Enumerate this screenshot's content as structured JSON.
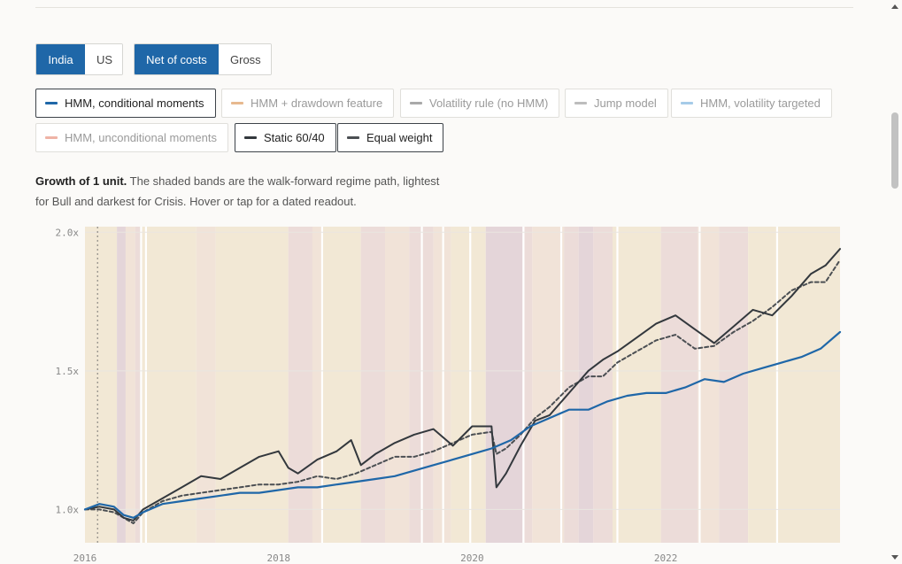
{
  "controls": {
    "market": [
      {
        "label": "India",
        "active": true
      },
      {
        "label": "US",
        "active": false
      }
    ],
    "cost": [
      {
        "label": "Net of costs",
        "active": true
      },
      {
        "label": "Gross",
        "active": false
      }
    ]
  },
  "legend": [
    {
      "label": "HMM, conditional moments",
      "color": "#1f67a8",
      "on": true
    },
    {
      "label": "HMM + drawdown feature",
      "color": "#e7b98f",
      "on": false
    },
    {
      "label": "Volatility rule (no HMM)",
      "color": "#a9a9a9",
      "on": false
    },
    {
      "label": "Jump model",
      "color": "#bdbdbd",
      "on": false
    },
    {
      "label": "HMM, volatility targeted",
      "color": "#a6cbe8",
      "on": false
    },
    {
      "label": "HMM, unconditional moments",
      "color": "#efb3a6",
      "on": false
    },
    {
      "label": "Static 60/40",
      "color": "#33383d",
      "on": true
    },
    {
      "label": "Equal weight",
      "color": "#4b4f53",
      "on": true
    }
  ],
  "caption": {
    "title": "Growth of 1 unit.",
    "text": "The shaded bands are the walk-forward regime path, lightest for Bull and darkest for Crisis. Hover or tap for a dated readout."
  },
  "chart_data": {
    "type": "line",
    "ylim": [
      0.88,
      2.02
    ],
    "xlim": [
      2016.0,
      2023.8
    ],
    "y_ticks": [
      {
        "v": 1.0,
        "label": "1.0x"
      },
      {
        "v": 1.5,
        "label": "1.5x"
      },
      {
        "v": 2.0,
        "label": "2.0x"
      }
    ],
    "x_ticks": [
      {
        "v": 2016,
        "label": "2016"
      },
      {
        "v": 2018,
        "label": "2018"
      },
      {
        "v": 2020,
        "label": "2020"
      },
      {
        "v": 2022,
        "label": "2022"
      }
    ],
    "marker_date": 2016.13,
    "regime_colors": {
      "bull": "#f2e8d5",
      "neutral": "#f1e3d8",
      "bear": "#ecdcd9",
      "crisis": "#e4d5d9"
    },
    "regimes": [
      {
        "start": 2016.0,
        "end": 2016.33,
        "regime": "bull"
      },
      {
        "start": 2016.33,
        "end": 2016.42,
        "regime": "crisis"
      },
      {
        "start": 2016.42,
        "end": 2016.52,
        "regime": "neutral"
      },
      {
        "start": 2016.52,
        "end": 2016.58,
        "regime": "bear"
      },
      {
        "start": 2016.58,
        "end": 2017.15,
        "regime": "bull"
      },
      {
        "start": 2017.15,
        "end": 2017.35,
        "regime": "neutral"
      },
      {
        "start": 2017.35,
        "end": 2018.1,
        "regime": "bull"
      },
      {
        "start": 2018.1,
        "end": 2018.35,
        "regime": "bear"
      },
      {
        "start": 2018.35,
        "end": 2018.45,
        "regime": "neutral"
      },
      {
        "start": 2018.45,
        "end": 2018.85,
        "regime": "bull"
      },
      {
        "start": 2018.85,
        "end": 2019.1,
        "regime": "bear"
      },
      {
        "start": 2019.1,
        "end": 2019.35,
        "regime": "neutral"
      },
      {
        "start": 2019.35,
        "end": 2019.6,
        "regime": "bear"
      },
      {
        "start": 2019.6,
        "end": 2019.78,
        "regime": "neutral"
      },
      {
        "start": 2019.78,
        "end": 2020.14,
        "regime": "bull"
      },
      {
        "start": 2020.14,
        "end": 2020.52,
        "regime": "crisis"
      },
      {
        "start": 2020.52,
        "end": 2020.62,
        "regime": "bear"
      },
      {
        "start": 2020.62,
        "end": 2020.95,
        "regime": "neutral"
      },
      {
        "start": 2020.95,
        "end": 2021.1,
        "regime": "bear"
      },
      {
        "start": 2021.1,
        "end": 2021.25,
        "regime": "crisis"
      },
      {
        "start": 2021.25,
        "end": 2021.45,
        "regime": "bear"
      },
      {
        "start": 2021.45,
        "end": 2021.95,
        "regime": "bull"
      },
      {
        "start": 2021.95,
        "end": 2022.33,
        "regime": "bear"
      },
      {
        "start": 2022.33,
        "end": 2022.55,
        "regime": "neutral"
      },
      {
        "start": 2022.55,
        "end": 2022.85,
        "regime": "bear"
      },
      {
        "start": 2022.85,
        "end": 2023.15,
        "regime": "bull"
      },
      {
        "start": 2023.15,
        "end": 2023.8,
        "regime": "bull"
      }
    ],
    "gap_lines": [
      2016.58,
      2016.63,
      2018.45,
      2019.48,
      2019.7,
      2019.98,
      2020.53,
      2020.92,
      2021.5,
      2022.35,
      2023.15
    ],
    "series": [
      {
        "name": "HMM, conditional moments",
        "color": "#1f67a8",
        "width": 2.2,
        "dash": "",
        "x": [
          2016.0,
          2016.15,
          2016.3,
          2016.4,
          2016.5,
          2016.6,
          2016.8,
          2017.0,
          2017.2,
          2017.4,
          2017.6,
          2017.8,
          2018.0,
          2018.2,
          2018.4,
          2018.6,
          2018.8,
          2019.0,
          2019.2,
          2019.4,
          2019.6,
          2019.8,
          2020.0,
          2020.2,
          2020.4,
          2020.6,
          2020.8,
          2021.0,
          2021.2,
          2021.4,
          2021.6,
          2021.8,
          2022.0,
          2022.2,
          2022.4,
          2022.6,
          2022.8,
          2023.0,
          2023.2,
          2023.4,
          2023.6,
          2023.8
        ],
        "y": [
          1.0,
          1.02,
          1.01,
          0.98,
          0.97,
          0.99,
          1.02,
          1.03,
          1.04,
          1.05,
          1.06,
          1.06,
          1.07,
          1.08,
          1.08,
          1.09,
          1.1,
          1.11,
          1.12,
          1.14,
          1.16,
          1.18,
          1.2,
          1.22,
          1.25,
          1.3,
          1.33,
          1.36,
          1.36,
          1.39,
          1.41,
          1.42,
          1.42,
          1.44,
          1.47,
          1.46,
          1.49,
          1.51,
          1.53,
          1.55,
          1.58,
          1.64
        ]
      },
      {
        "name": "Static 60/40",
        "color": "#33383d",
        "width": 2.0,
        "dash": "",
        "x": [
          2016.0,
          2016.15,
          2016.3,
          2016.4,
          2016.5,
          2016.6,
          2016.8,
          2017.0,
          2017.2,
          2017.4,
          2017.6,
          2017.8,
          2018.0,
          2018.1,
          2018.2,
          2018.4,
          2018.6,
          2018.75,
          2018.85,
          2019.0,
          2019.2,
          2019.4,
          2019.6,
          2019.8,
          2020.0,
          2020.2,
          2020.25,
          2020.35,
          2020.5,
          2020.65,
          2020.8,
          2021.0,
          2021.2,
          2021.35,
          2021.5,
          2021.7,
          2021.9,
          2022.1,
          2022.3,
          2022.5,
          2022.7,
          2022.9,
          2023.1,
          2023.3,
          2023.5,
          2023.65,
          2023.8
        ],
        "y": [
          1.0,
          1.01,
          1.0,
          0.97,
          0.96,
          1.0,
          1.04,
          1.08,
          1.12,
          1.11,
          1.15,
          1.19,
          1.21,
          1.15,
          1.13,
          1.18,
          1.21,
          1.25,
          1.16,
          1.2,
          1.24,
          1.27,
          1.29,
          1.23,
          1.3,
          1.3,
          1.08,
          1.13,
          1.23,
          1.32,
          1.34,
          1.42,
          1.5,
          1.54,
          1.57,
          1.62,
          1.67,
          1.7,
          1.65,
          1.6,
          1.66,
          1.72,
          1.7,
          1.77,
          1.85,
          1.88,
          1.94
        ]
      },
      {
        "name": "Equal weight",
        "color": "#4b4f53",
        "width": 2.0,
        "dash": "4 3",
        "x": [
          2016.0,
          2016.15,
          2016.3,
          2016.4,
          2016.5,
          2016.6,
          2016.8,
          2017.0,
          2017.2,
          2017.4,
          2017.6,
          2017.8,
          2018.0,
          2018.2,
          2018.4,
          2018.6,
          2018.8,
          2019.0,
          2019.2,
          2019.4,
          2019.6,
          2019.8,
          2020.0,
          2020.2,
          2020.25,
          2020.35,
          2020.5,
          2020.65,
          2020.8,
          2021.0,
          2021.2,
          2021.35,
          2021.5,
          2021.7,
          2021.9,
          2022.1,
          2022.3,
          2022.5,
          2022.7,
          2022.9,
          2023.1,
          2023.3,
          2023.5,
          2023.65,
          2023.8
        ],
        "y": [
          1.0,
          1.0,
          0.99,
          0.97,
          0.95,
          0.99,
          1.03,
          1.05,
          1.06,
          1.07,
          1.08,
          1.09,
          1.09,
          1.1,
          1.12,
          1.11,
          1.13,
          1.16,
          1.19,
          1.19,
          1.21,
          1.24,
          1.27,
          1.28,
          1.2,
          1.22,
          1.27,
          1.33,
          1.37,
          1.44,
          1.48,
          1.48,
          1.53,
          1.57,
          1.61,
          1.63,
          1.58,
          1.59,
          1.64,
          1.68,
          1.73,
          1.79,
          1.82,
          1.82,
          1.9
        ]
      }
    ]
  }
}
